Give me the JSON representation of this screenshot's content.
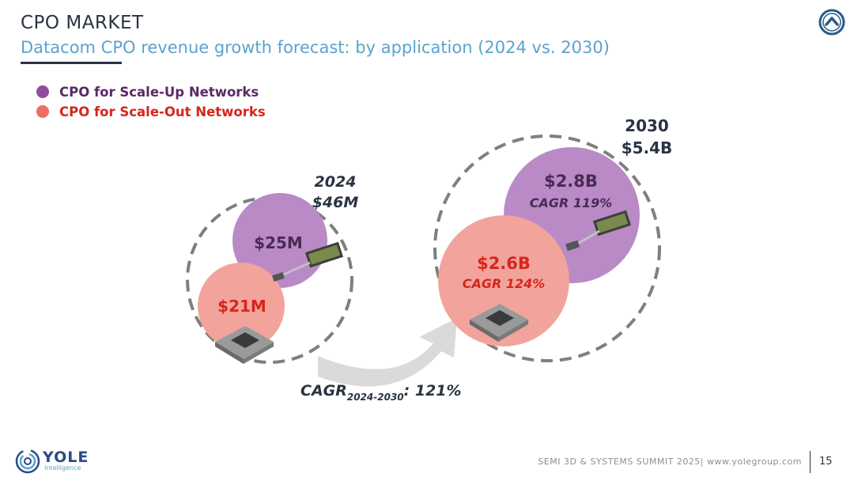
{
  "header": {
    "title": "CPO MARKET",
    "subtitle": "Datacom CPO revenue growth forecast: by application (2024 vs. 2030)"
  },
  "legend": [
    {
      "label": "CPO for Scale-Up Networks",
      "color": "#8e4e9c"
    },
    {
      "label": "CPO for Scale-Out Networks",
      "color": "#e0483c"
    }
  ],
  "chart_data": {
    "type": "bubble",
    "groups": [
      {
        "year": "2024",
        "total_label": "$46M",
        "total_musd": 46,
        "segments": [
          {
            "series": "CPO for Scale-Up Networks",
            "value_label": "$25M",
            "value_musd": 25
          },
          {
            "series": "CPO for Scale-Out Networks",
            "value_label": "$21M",
            "value_musd": 21
          }
        ]
      },
      {
        "year": "2030",
        "total_label": "$5.4B",
        "total_musd": 5400,
        "segments": [
          {
            "series": "CPO for Scale-Up Networks",
            "value_label": "$2.8B",
            "value_musd": 2800,
            "cagr_label": "CAGR 119%",
            "cagr_pct": 119
          },
          {
            "series": "CPO for Scale-Out Networks",
            "value_label": "$2.6B",
            "value_musd": 2600,
            "cagr_label": "CAGR 124%",
            "cagr_pct": 124
          }
        ]
      }
    ],
    "overall_cagr": {
      "label_main": "CAGR",
      "label_sub": "2024-2030",
      "value_label": ": 121%",
      "value_pct": 121
    }
  },
  "colors": {
    "scale_up_fill": "#b98ac6",
    "scale_up_text": "#4a2a55",
    "scale_out_fill": "#f2a39c",
    "scale_out_text": "#d6261c",
    "dashed": "#7f7f7f",
    "arrow": "#dadada"
  },
  "footer": {
    "brand": "YOLE",
    "brand_sub": "Intelligence",
    "event_text": "SEMI 3D & SYSTEMS SUMMIT 2025| www.yolegroup.com",
    "page_number": "15"
  },
  "icons": {
    "home": "chevron-up-circle-icon",
    "logo": "yole-logo-icon",
    "chip": "chip-package-icon",
    "module": "optical-module-icon"
  }
}
